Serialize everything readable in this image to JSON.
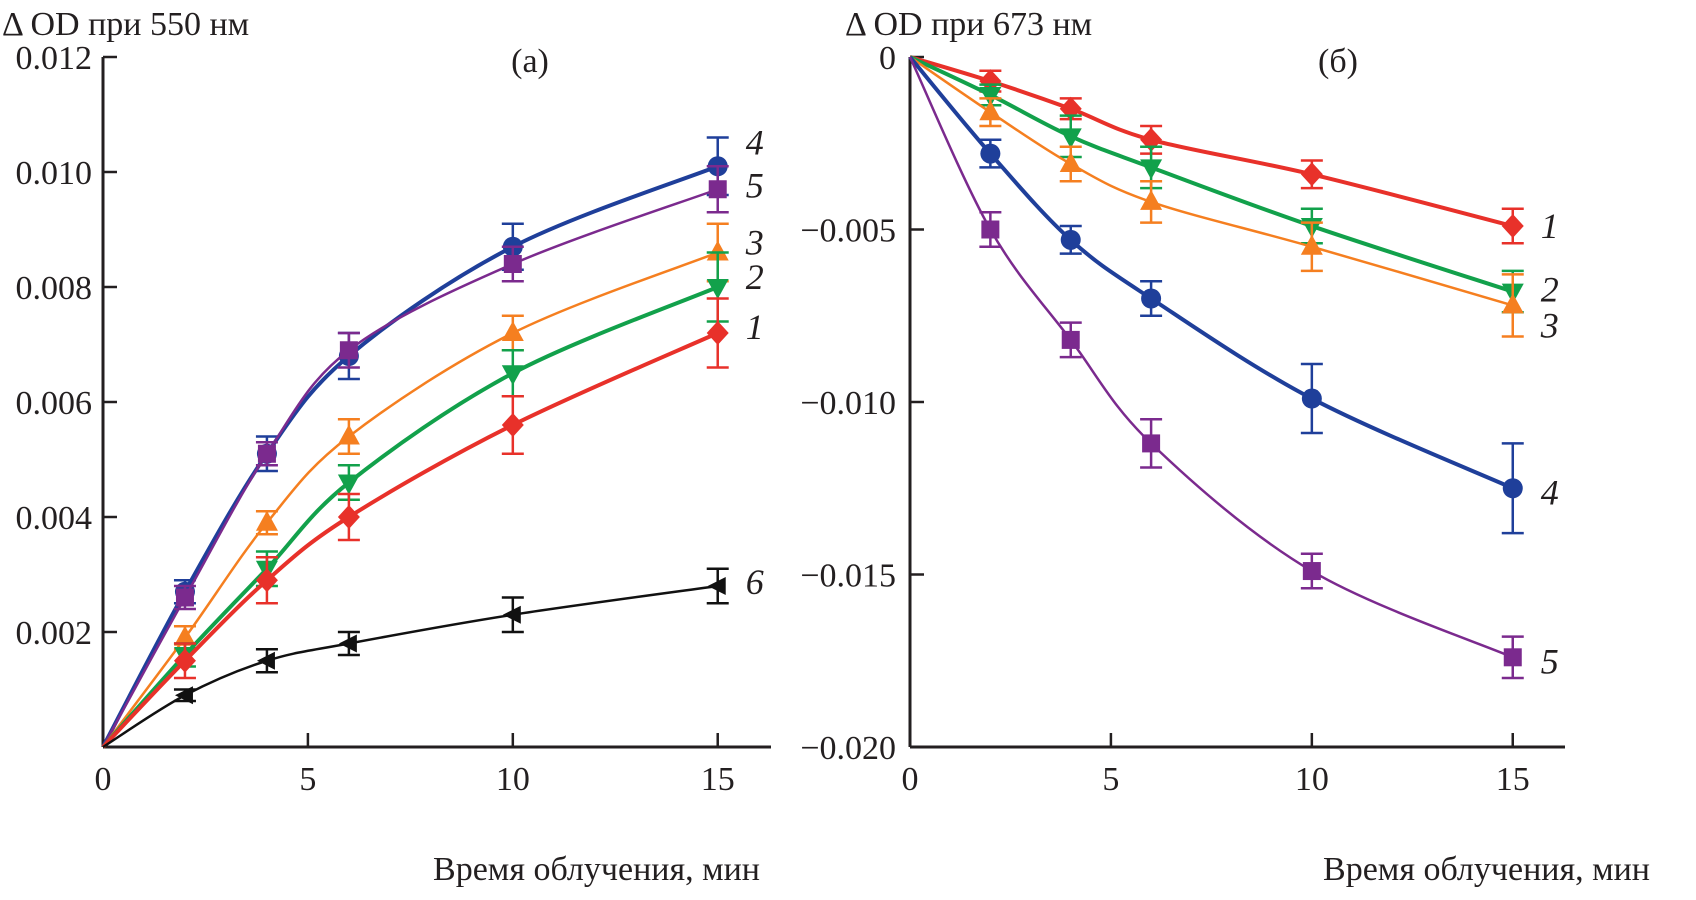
{
  "chart_data": [
    {
      "type": "line",
      "panel_label": "(а)",
      "title": "Δ OD при 550  нм",
      "xlabel": "Время облучения, мин",
      "ylabel": "Δ OD при 550  нм",
      "xlim": [
        0,
        16.3
      ],
      "ylim": [
        0,
        0.012
      ],
      "xticks": [
        0,
        5,
        10,
        15
      ],
      "xtick_labels": [
        "0",
        "5",
        "10",
        "15"
      ],
      "yticks": [
        0.002,
        0.004,
        0.006,
        0.008,
        0.01,
        0.012
      ],
      "ytick_labels": [
        "0.002",
        "0.004",
        "0.006",
        "0.008",
        "0.010",
        "0.012"
      ],
      "grid": false,
      "x": [
        0,
        2,
        4,
        6,
        10,
        15
      ],
      "series": [
        {
          "name": "4",
          "color": "#1f3f9a",
          "marker": "circle",
          "values": [
            0,
            0.0027,
            0.0051,
            0.0068,
            0.0087,
            0.0101
          ],
          "errors": [
            0,
            0.0002,
            0.0003,
            0.0004,
            0.0004,
            0.0005
          ]
        },
        {
          "name": "5",
          "color": "#7b2a8e",
          "marker": "square",
          "values": [
            0,
            0.0026,
            0.0051,
            0.0069,
            0.0084,
            0.0097
          ],
          "errors": [
            0,
            0.0002,
            0.0002,
            0.0003,
            0.0003,
            0.0004
          ]
        },
        {
          "name": "3",
          "color": "#f57f20",
          "marker": "triangle-up",
          "values": [
            0,
            0.0019,
            0.0039,
            0.0054,
            0.0072,
            0.0086
          ],
          "errors": [
            0,
            0.0002,
            0.0002,
            0.0003,
            0.0003,
            0.0005
          ]
        },
        {
          "name": "2",
          "color": "#12a14b",
          "marker": "triangle-down",
          "values": [
            0,
            0.0016,
            0.0031,
            0.0046,
            0.0065,
            0.008
          ],
          "errors": [
            0,
            0.0002,
            0.0003,
            0.0003,
            0.0004,
            0.0006
          ]
        },
        {
          "name": "1",
          "color": "#e8312a",
          "marker": "diamond",
          "values": [
            0,
            0.0015,
            0.0029,
            0.004,
            0.0056,
            0.0072
          ],
          "errors": [
            0,
            0.0003,
            0.0004,
            0.0004,
            0.0005,
            0.0006
          ]
        },
        {
          "name": "6",
          "color": "#111111",
          "marker": "triangle-left",
          "values": [
            0,
            0.0009,
            0.0015,
            0.0018,
            0.0023,
            0.0028
          ],
          "errors": [
            0,
            0.0001,
            0.0002,
            0.0002,
            0.0003,
            0.0003
          ]
        }
      ]
    },
    {
      "type": "line",
      "panel_label": "(б)",
      "title": "Δ OD при 673 нм",
      "xlabel": "Время облучения, мин",
      "ylabel": "Δ OD при 673 нм",
      "xlim": [
        0,
        16.3
      ],
      "ylim": [
        -0.02,
        0
      ],
      "xticks": [
        0,
        5,
        10,
        15
      ],
      "xtick_labels": [
        "0",
        "5",
        "10",
        "15"
      ],
      "yticks": [
        0,
        -0.005,
        -0.01,
        -0.015,
        -0.02
      ],
      "ytick_labels": [
        "0",
        "−0.005",
        "−0.010",
        "−0.015",
        "−0.020"
      ],
      "grid": false,
      "x": [
        0,
        2,
        4,
        6,
        10,
        15
      ],
      "series": [
        {
          "name": "1",
          "color": "#e8312a",
          "marker": "diamond",
          "values": [
            0,
            -0.0007,
            -0.0015,
            -0.0024,
            -0.0034,
            -0.0049
          ],
          "errors": [
            0,
            0.0003,
            0.0003,
            0.0004,
            0.0004,
            0.0005
          ]
        },
        {
          "name": "2",
          "color": "#12a14b",
          "marker": "triangle-down",
          "values": [
            0,
            -0.0011,
            -0.0023,
            -0.0032,
            -0.0049,
            -0.0068
          ],
          "errors": [
            0,
            0.0003,
            0.0006,
            0.0006,
            0.0005,
            0.0006
          ]
        },
        {
          "name": "3",
          "color": "#f57f20",
          "marker": "triangle-up",
          "values": [
            0,
            -0.0016,
            -0.0031,
            -0.0042,
            -0.0055,
            -0.0072
          ],
          "errors": [
            0,
            0.0004,
            0.0005,
            0.0006,
            0.0007,
            0.0009
          ]
        },
        {
          "name": "4",
          "color": "#1f3f9a",
          "marker": "circle",
          "values": [
            0,
            -0.0028,
            -0.0053,
            -0.007,
            -0.0099,
            -0.0125
          ],
          "errors": [
            0,
            0.0004,
            0.0004,
            0.0005,
            0.001,
            0.0013
          ]
        },
        {
          "name": "5",
          "color": "#7b2a8e",
          "marker": "square",
          "values": [
            0,
            -0.005,
            -0.0082,
            -0.0112,
            -0.0149,
            -0.0174
          ],
          "errors": [
            0,
            0.0005,
            0.0005,
            0.0007,
            0.0005,
            0.0006
          ]
        }
      ]
    }
  ]
}
